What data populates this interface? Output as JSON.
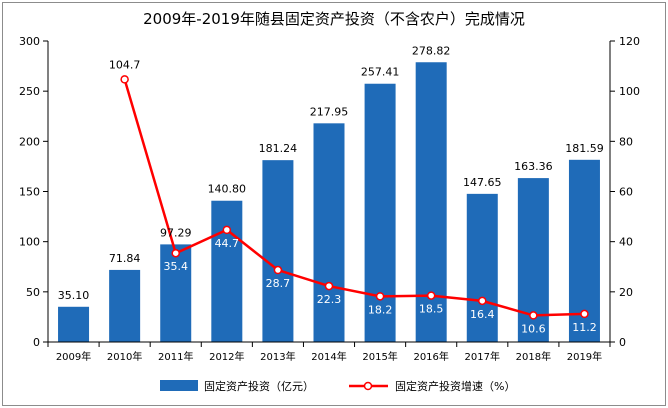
{
  "chart_data": {
    "type": "bar",
    "title": "2009年-2019年随县固定资产投资（不含农户）完成情况",
    "categories": [
      "2009年",
      "2010年",
      "2011年",
      "2012年",
      "2013年",
      "2014年",
      "2015年",
      "2016年",
      "2017年",
      "2018年",
      "2019年"
    ],
    "series": [
      {
        "name": "固定资产投资（亿元）",
        "type": "bar",
        "axis": "left",
        "color": "#1f6bb8",
        "values": [
          35.1,
          71.84,
          97.29,
          140.8,
          181.24,
          217.95,
          257.41,
          278.82,
          147.65,
          163.36,
          181.59
        ],
        "labels": [
          "35.10",
          "71.84",
          "97.29",
          "140.80",
          "181.24",
          "217.95",
          "257.41",
          "278.82",
          "147.65",
          "163.36",
          "181.59"
        ]
      },
      {
        "name": "固定资产投资增速（%）",
        "type": "line",
        "axis": "right",
        "color": "#ff0000",
        "values": [
          null,
          104.7,
          35.4,
          44.7,
          28.7,
          22.3,
          18.2,
          18.5,
          16.4,
          10.6,
          11.2
        ],
        "labels": [
          "",
          "104.7",
          "35.4",
          "44.7",
          "28.7",
          "22.3",
          "18.2",
          "18.5",
          "16.4",
          "10.6",
          "11.2"
        ]
      }
    ],
    "y_left": {
      "range": [
        0,
        300
      ],
      "ticks": [
        "0",
        "50",
        "100",
        "150",
        "200",
        "250",
        "300"
      ]
    },
    "y_right": {
      "range": [
        0,
        120
      ],
      "ticks": [
        "0",
        "20",
        "40",
        "60",
        "80",
        "100",
        "120"
      ]
    },
    "grid": false,
    "legend_position": "bottom"
  }
}
